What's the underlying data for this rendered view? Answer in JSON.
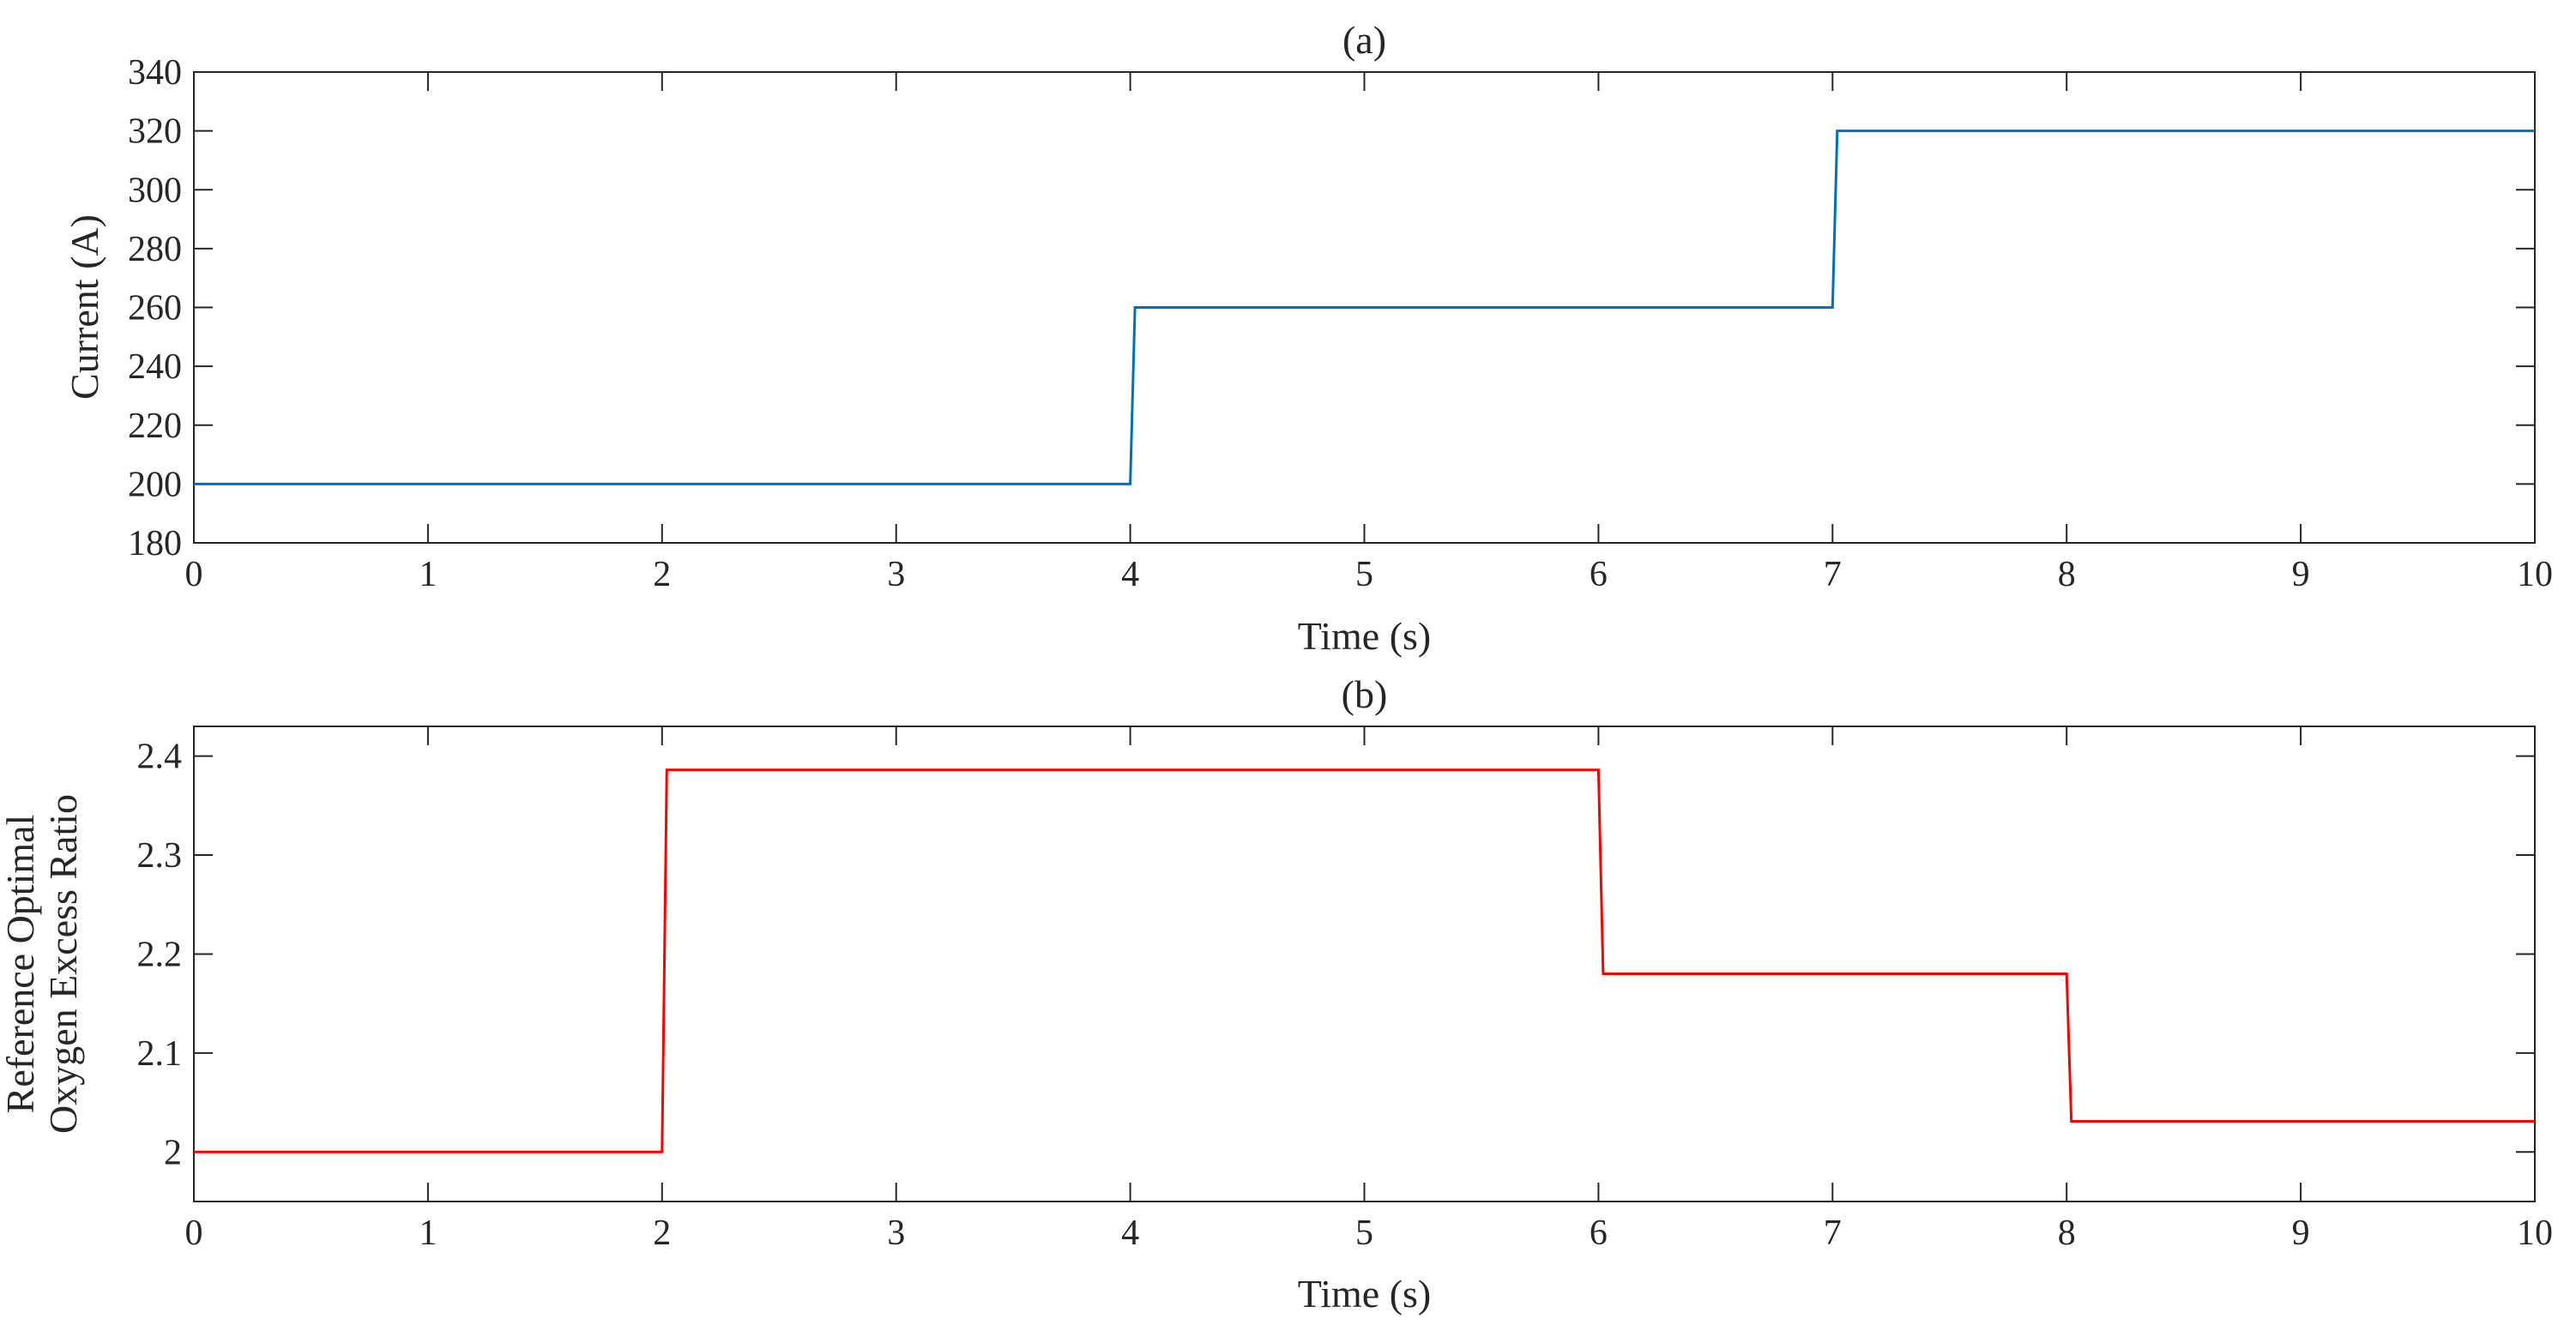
{
  "chart_data": [
    {
      "type": "line",
      "title": "(a)",
      "xlabel": "Time (s)",
      "ylabel": [
        "Current (A)"
      ],
      "xlim": [
        0,
        10
      ],
      "ylim": [
        180,
        340
      ],
      "xticks": [
        0,
        1,
        2,
        3,
        4,
        5,
        6,
        7,
        8,
        9,
        10
      ],
      "yticks": [
        180,
        200,
        220,
        240,
        260,
        280,
        300,
        320,
        340
      ],
      "grid": false,
      "series": [
        {
          "color": "#0072BD",
          "x": [
            0,
            4,
            4.02,
            7,
            7.02,
            10
          ],
          "y": [
            200,
            200,
            260,
            260,
            320,
            320
          ]
        }
      ]
    },
    {
      "type": "line",
      "title": "(b)",
      "xlabel": "Time (s)",
      "ylabel": [
        "Reference Optimal",
        "Oxygen Excess Ratio"
      ],
      "xlim": [
        0,
        10
      ],
      "ylim": [
        1.95,
        2.43
      ],
      "xticks": [
        0,
        1,
        2,
        3,
        4,
        5,
        6,
        7,
        8,
        9,
        10
      ],
      "yticks": [
        2,
        2.1,
        2.2,
        2.3,
        2.4
      ],
      "grid": false,
      "series": [
        {
          "color": "#FF0000",
          "x": [
            0,
            2,
            2.02,
            6,
            6.02,
            8,
            8.02,
            10
          ],
          "y": [
            2,
            2,
            2.386,
            2.386,
            2.18,
            2.18,
            2.031,
            2.031
          ]
        }
      ]
    }
  ]
}
